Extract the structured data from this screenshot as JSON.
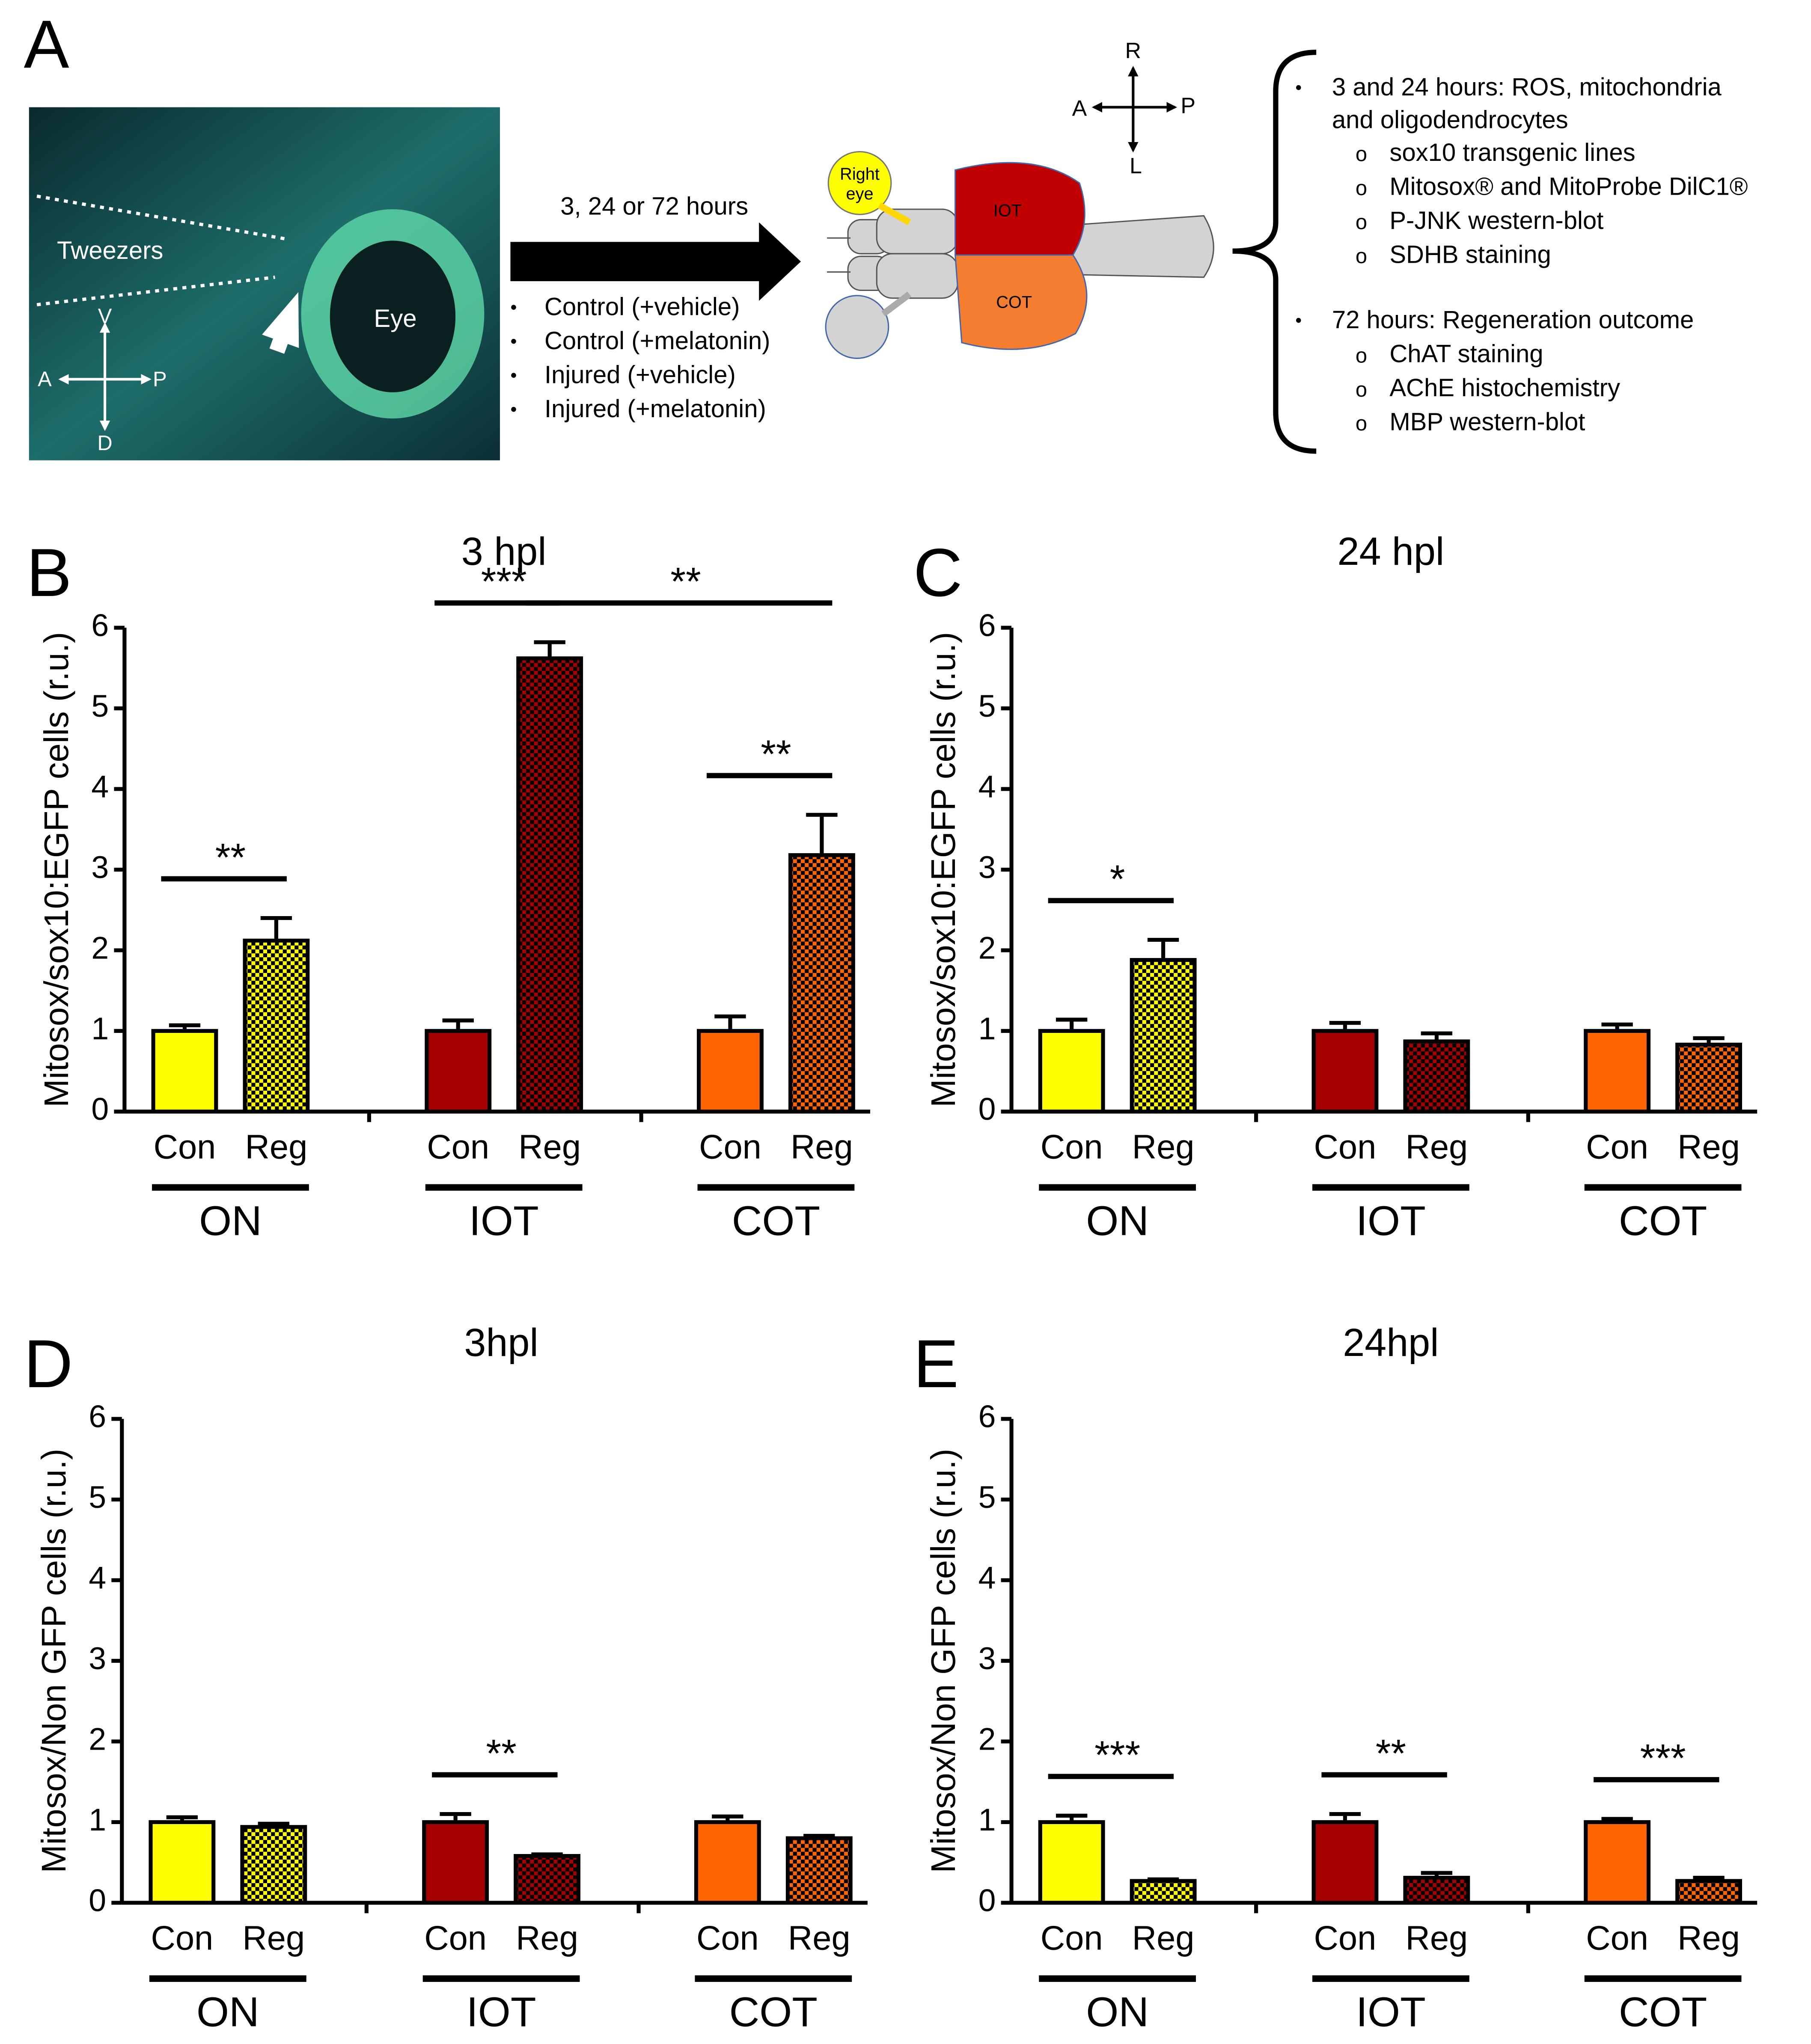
{
  "panel_a": {
    "label": "A",
    "photo": {
      "tweezers": "Tweezers",
      "eye": "Eye",
      "axes": [
        "V",
        "D",
        "A",
        "P"
      ]
    },
    "arrow_label": "3, 24 or 72 hours",
    "conditions": [
      "Control (+vehicle)",
      "Control (+melatonin)",
      "Injured (+vehicle)",
      "Injured (+melatonin)"
    ],
    "brain": {
      "right_eye": [
        "Right",
        "eye"
      ],
      "iot": "IOT",
      "cot": "COT",
      "axes": [
        "R",
        "L",
        "A",
        "P"
      ]
    },
    "outcomes": [
      {
        "heading": [
          "3 and 24 hours: ROS, mitochondria",
          "and oligodendrocytes"
        ],
        "items": [
          "sox10 transgenic lines",
          "Mitosox® and MitoProbe DilC1®",
          "P-JNK western-blot",
          "SDHB staining"
        ]
      },
      {
        "heading": [
          "72 hours: Regeneration outcome"
        ],
        "items": [
          "ChAT staining",
          "AChE histochemistry",
          "MBP western-blot"
        ]
      }
    ]
  },
  "chart_data": [
    {
      "type": "bar",
      "panel": "B",
      "title": "3 hpl",
      "ylabel": "Mitosox/sox10:EGFP cells (r.u.)",
      "categories": [
        "Con",
        "Reg",
        "Con",
        "Reg",
        "Con",
        "Reg"
      ],
      "groups": [
        "ON",
        "IOT",
        "COT"
      ],
      "values": [
        1.0,
        2.12,
        1.0,
        5.62,
        1.0,
        3.18
      ],
      "errors": [
        0.07,
        0.28,
        0.13,
        0.2,
        0.18,
        0.5
      ],
      "colors": [
        "#ffff00",
        "#ffff00",
        "#a50000",
        "#a50000",
        "#ff6600",
        "#ff6600"
      ],
      "patterned": [
        false,
        true,
        false,
        true,
        false,
        true
      ],
      "significance": [
        {
          "label": "**",
          "bars": [
            0,
            1
          ]
        },
        {
          "label": "***",
          "bars": [
            2,
            3
          ]
        },
        {
          "label": "**",
          "bars": [
            3,
            5
          ]
        },
        {
          "label": "**",
          "bars": [
            4,
            5
          ]
        }
      ],
      "ylim": [
        0,
        6
      ],
      "yticks": [
        0,
        1,
        2,
        3,
        4,
        5,
        6
      ]
    },
    {
      "type": "bar",
      "panel": "C",
      "title": "24 hpl",
      "ylabel": "Mitosox/sox10:EGFP cells (r.u.)",
      "categories": [
        "Con",
        "Reg",
        "Con",
        "Reg",
        "Con",
        "Reg"
      ],
      "groups": [
        "ON",
        "IOT",
        "COT"
      ],
      "values": [
        1.0,
        1.88,
        1.0,
        0.87,
        1.0,
        0.83
      ],
      "errors": [
        0.14,
        0.25,
        0.1,
        0.1,
        0.08,
        0.08
      ],
      "colors": [
        "#ffff00",
        "#ffff00",
        "#a50000",
        "#a50000",
        "#ff6600",
        "#ff6600"
      ],
      "patterned": [
        false,
        true,
        false,
        true,
        false,
        true
      ],
      "significance": [
        {
          "label": "*",
          "bars": [
            0,
            1
          ]
        }
      ],
      "ylim": [
        0,
        6
      ],
      "yticks": [
        0,
        1,
        2,
        3,
        4,
        5,
        6
      ]
    },
    {
      "type": "bar",
      "panel": "D",
      "title": "3hpl",
      "ylabel": "Mitosox/Non GFP cells (r.u.)",
      "categories": [
        "Con",
        "Reg",
        "Con",
        "Reg",
        "Con",
        "Reg"
      ],
      "groups": [
        "ON",
        "IOT",
        "COT"
      ],
      "values": [
        1.0,
        0.94,
        1.0,
        0.58,
        1.0,
        0.8
      ],
      "errors": [
        0.06,
        0.04,
        0.1,
        0.02,
        0.07,
        0.03
      ],
      "colors": [
        "#ffff00",
        "#ffff00",
        "#a50000",
        "#a50000",
        "#ff6600",
        "#ff6600"
      ],
      "patterned": [
        false,
        true,
        false,
        true,
        false,
        true
      ],
      "significance": [
        {
          "label": "**",
          "bars": [
            2,
            3
          ]
        }
      ],
      "ylim": [
        0,
        6
      ],
      "yticks": [
        0,
        1,
        2,
        3,
        4,
        5,
        6
      ]
    },
    {
      "type": "bar",
      "panel": "E",
      "title": "24hpl",
      "ylabel": "Mitosox/Non GFP cells (r.u.)",
      "categories": [
        "Con",
        "Reg",
        "Con",
        "Reg",
        "Con",
        "Reg"
      ],
      "groups": [
        "ON",
        "IOT",
        "COT"
      ],
      "values": [
        1.0,
        0.27,
        1.0,
        0.31,
        1.0,
        0.27
      ],
      "errors": [
        0.08,
        0.02,
        0.1,
        0.06,
        0.04,
        0.04
      ],
      "colors": [
        "#ffff00",
        "#ffff00",
        "#a50000",
        "#a50000",
        "#ff6600",
        "#ff6600"
      ],
      "patterned": [
        false,
        true,
        false,
        true,
        false,
        true
      ],
      "significance": [
        {
          "label": "***",
          "bars": [
            0,
            1
          ]
        },
        {
          "label": "**",
          "bars": [
            2,
            3
          ]
        },
        {
          "label": "***",
          "bars": [
            4,
            5
          ]
        }
      ],
      "ylim": [
        0,
        6
      ],
      "yticks": [
        0,
        1,
        2,
        3,
        4,
        5,
        6
      ]
    }
  ]
}
